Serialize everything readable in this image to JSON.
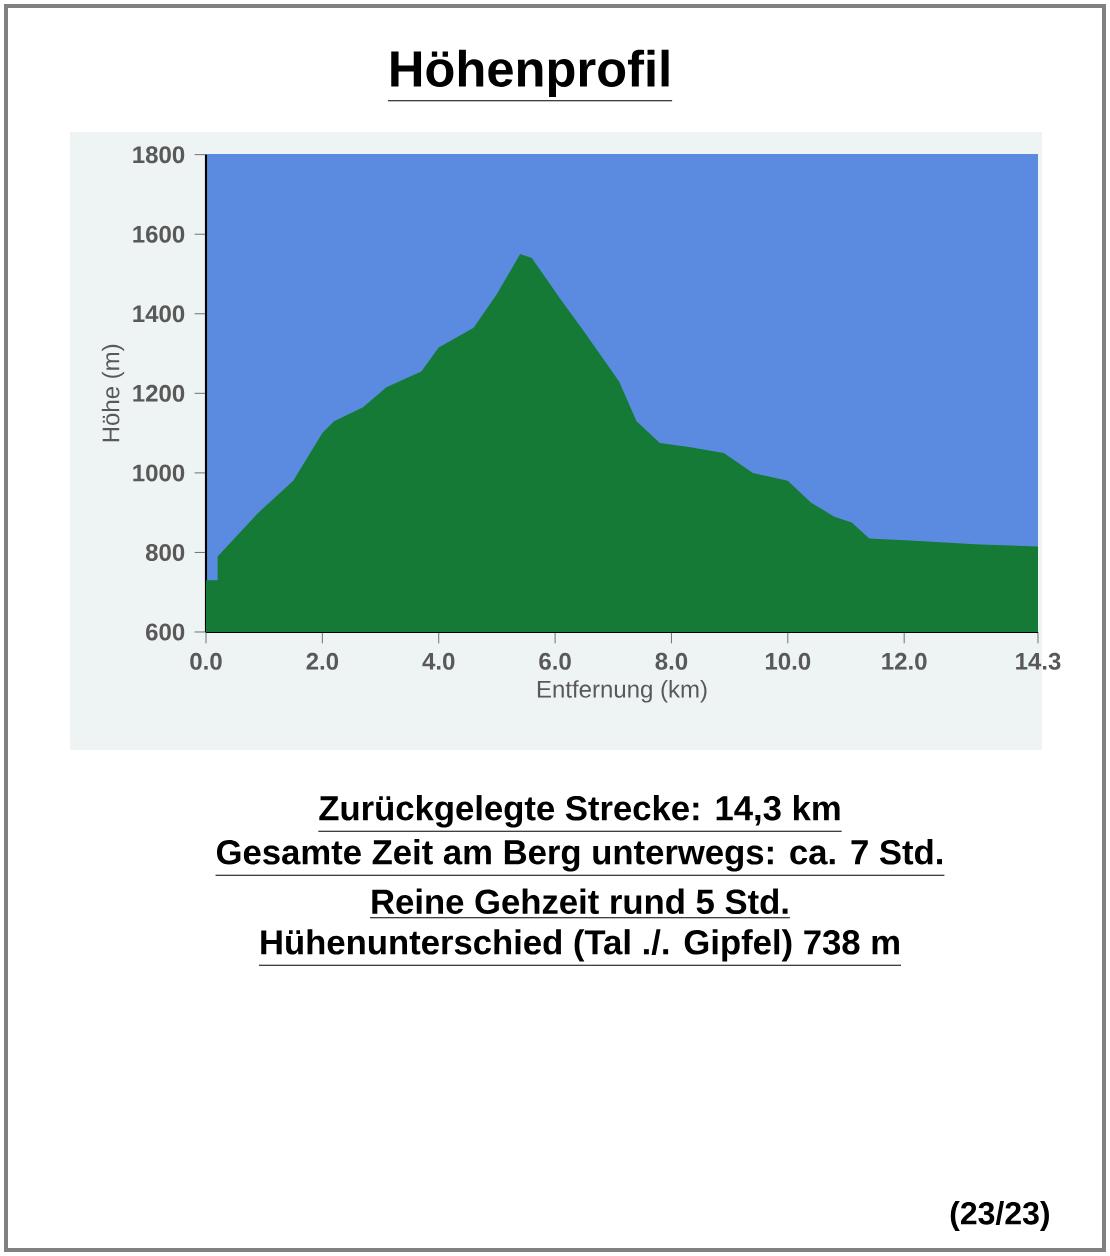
{
  "chart_data": {
    "type": "area",
    "title": "Höhenprofil",
    "xlabel": "Entfernung  (km)",
    "ylabel": "Höhe (m)",
    "x": [
      0,
      0.2,
      0.2,
      0.9,
      1.5,
      2.0,
      2.2,
      2.7,
      3.1,
      3.7,
      4.0,
      4.6,
      5.0,
      5.4,
      5.6,
      6.1,
      6.5,
      7.1,
      7.4,
      7.8,
      8.3,
      8.9,
      9.4,
      10.0,
      10.4,
      10.8,
      11.1,
      11.4,
      12.1,
      13.3,
      14.3
    ],
    "values": [
      730,
      730,
      790,
      900,
      980,
      1100,
      1130,
      1165,
      1215,
      1255,
      1315,
      1365,
      1450,
      1550,
      1540,
      1435,
      1355,
      1230,
      1130,
      1075,
      1065,
      1050,
      1000,
      980,
      925,
      890,
      875,
      835,
      830,
      820,
      815
    ],
    "color": "#147a36",
    "xlim": [
      0,
      14.3
    ],
    "ylim": [
      600,
      1800
    ],
    "xticks": [
      {
        "value": 0,
        "label": "0.0"
      },
      {
        "value": 2,
        "label": "2.0"
      },
      {
        "value": 4,
        "label": "4.0"
      },
      {
        "value": 6,
        "label": "6.0"
      },
      {
        "value": 8,
        "label": "8.0"
      },
      {
        "value": 10,
        "label": "10.0"
      },
      {
        "value": 12,
        "label": "12.0"
      },
      14.3
    ],
    "yticks": [
      600,
      800,
      1000,
      1200,
      1400,
      1600,
      1800
    ],
    "annotations": [
      "Zurückgelegte Strecke: 14,3  km",
      "Gesamte Zeit am Berg unterwegs: ca. 7 Std.",
      "Reine Gehzeit rund 5 Std.",
      "Hühenunterschied (Tal ./. Gipfel) 738 m",
      "(23/23)"
    ]
  }
}
